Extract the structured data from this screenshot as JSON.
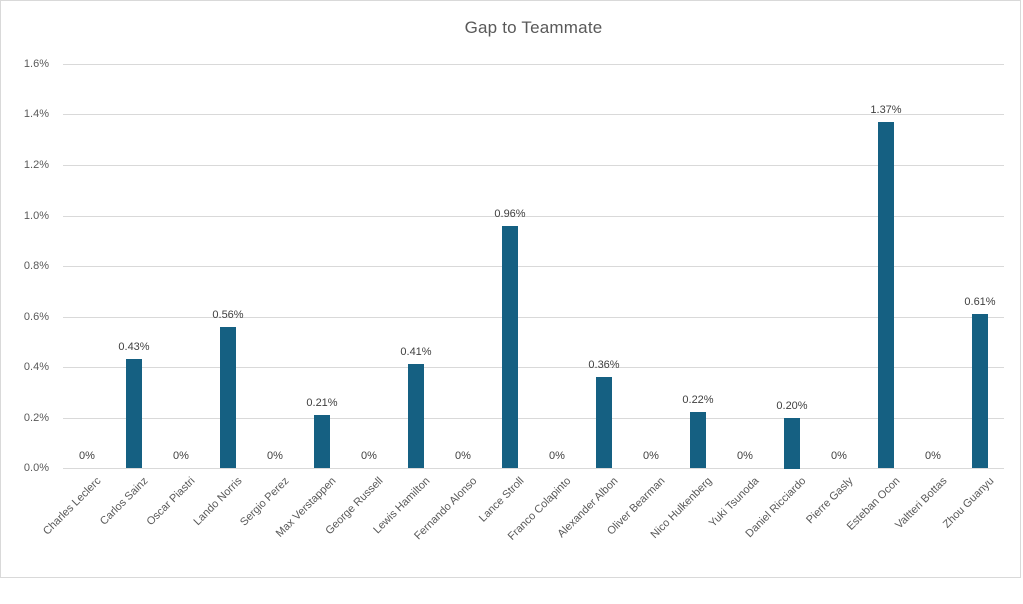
{
  "chart": {
    "title": "Gap to Teammate",
    "colors": {
      "bar": "#156082",
      "gridline": "#d9d9d9",
      "axis_line": "#d9d9d9",
      "axis_text": "#595959",
      "data_label_text": "#404040",
      "title_text": "#595959",
      "frame_border": "#d9d9d9",
      "background": "#ffffff"
    }
  },
  "chart_data": {
    "type": "bar",
    "title": "Gap to Teammate",
    "xlabel": "",
    "ylabel": "",
    "categories": [
      "Charles Leclerc",
      "Carlos Sainz",
      "Oscar Piastri",
      "Lando Norris",
      "Sergio Perez",
      "Max Verstappen",
      "George Russell",
      "Lewis Hamilton",
      "Fernando Alonso",
      "Lance Stroll",
      "Franco Colapinto",
      "Alexander Albon",
      "Oliver Bearman",
      "Nico Hulkenberg",
      "Yuki Tsunoda",
      "Daniel Ricciardo",
      "Pierre Gasly",
      "Esteban Ocon",
      "Valtteri Bottas",
      "Zhou Guanyu"
    ],
    "values": [
      0,
      0.43,
      0,
      0.56,
      0,
      0.21,
      0,
      0.41,
      0,
      0.96,
      0,
      0.36,
      0,
      0.22,
      0,
      0.2,
      0,
      1.37,
      0,
      0.61
    ],
    "data_labels": [
      "0%",
      "0.43%",
      "0%",
      "0.56%",
      "0%",
      "0.21%",
      "0%",
      "0.41%",
      "0%",
      "0.96%",
      "0%",
      "0.36%",
      "0%",
      "0.22%",
      "0%",
      "0.20%",
      "0%",
      "1.37%",
      "0%",
      "0.61%"
    ],
    "ylim": [
      0,
      1.6
    ],
    "ytick_step": 0.2,
    "ytick_labels": [
      "0.0%",
      "0.2%",
      "0.4%",
      "0.6%",
      "0.8%",
      "1.0%",
      "1.2%",
      "1.4%",
      "1.6%"
    ],
    "grid": true,
    "legend": false,
    "data_labels_shown": true,
    "x_label_rotation_deg": 45
  }
}
